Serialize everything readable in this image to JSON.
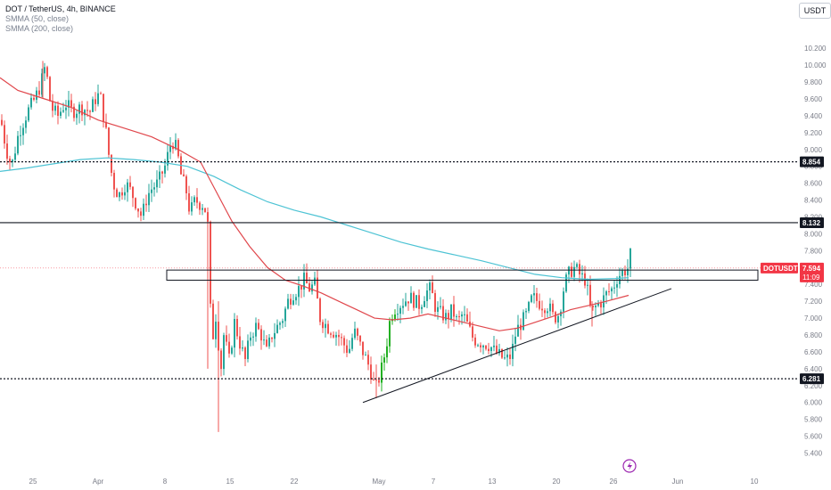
{
  "header": {
    "symbol_line": "DOT / TetherUS, 4h, BINANCE",
    "indicator_1": "SMMA (50, close)",
    "indicator_2": "SMMA (200, close)",
    "unit_button": "USDT"
  },
  "colors": {
    "up": "#26a69a",
    "up_bright": "#22b022",
    "down": "#ef5350",
    "smma50": "#e0474c",
    "smma200": "#4dc3d4",
    "level_line": "#131722",
    "price_tag": "#f23645"
  },
  "chart_data": {
    "type": "candlestick",
    "symbol": "DOTUSDT",
    "timeframe": "4h",
    "ylim": [
      5.3,
      10.35
    ],
    "y_ticks": [
      "10.200",
      "10.000",
      "9.800",
      "9.600",
      "9.400",
      "9.200",
      "9.000",
      "8.800",
      "8.600",
      "8.400",
      "8.200",
      "8.000",
      "7.800",
      "7.600",
      "7.400",
      "7.200",
      "7.000",
      "6.800",
      "6.600",
      "6.400",
      "6.200",
      "6.000",
      "5.800",
      "5.600",
      "5.400"
    ],
    "x_ticks": [
      "25",
      "Apr",
      "8",
      "15",
      "22",
      "May",
      "7",
      "13",
      "20",
      "26",
      "Jun",
      "10"
    ],
    "levels": [
      {
        "label": "8.854",
        "value": 8.854,
        "style": "dotted"
      },
      {
        "label": "8.132",
        "value": 8.132,
        "style": "solid"
      },
      {
        "label": "6.281",
        "value": 6.281,
        "style": "dotted"
      }
    ],
    "current_price": {
      "symbol": "DOTUSDT",
      "price": "7.594",
      "countdown": "11:09",
      "value": 7.594
    },
    "resistance_zone": [
      7.45,
      7.57
    ],
    "trendline": {
      "from": {
        "x": "May 1",
        "y": 6.0
      },
      "to": {
        "x": "May 27",
        "y": 7.35
      }
    },
    "price_path": [
      [
        0,
        9.35
      ],
      [
        6,
        9.0
      ],
      [
        12,
        8.8
      ],
      [
        20,
        9.2
      ],
      [
        30,
        9.45
      ],
      [
        38,
        9.6
      ],
      [
        44,
        9.75
      ],
      [
        50,
        10.0
      ],
      [
        56,
        9.5
      ],
      [
        64,
        9.4
      ],
      [
        72,
        9.55
      ],
      [
        80,
        9.45
      ],
      [
        90,
        9.5
      ],
      [
        100,
        9.45
      ],
      [
        108,
        9.65
      ],
      [
        112,
        9.6
      ],
      [
        118,
        9.2
      ],
      [
        122,
        8.85
      ],
      [
        126,
        8.6
      ],
      [
        132,
        8.45
      ],
      [
        140,
        8.6
      ],
      [
        146,
        8.5
      ],
      [
        152,
        8.35
      ],
      [
        158,
        8.2
      ],
      [
        164,
        8.45
      ],
      [
        170,
        8.55
      ],
      [
        176,
        8.6
      ],
      [
        184,
        8.8
      ],
      [
        190,
        9.05
      ],
      [
        194,
        9.1
      ],
      [
        198,
        8.95
      ],
      [
        202,
        8.7
      ],
      [
        208,
        8.5
      ],
      [
        212,
        8.25
      ],
      [
        218,
        8.4
      ],
      [
        224,
        8.35
      ],
      [
        228,
        8.35
      ],
      [
        232,
        8.1
      ],
      [
        235,
        7.1
      ],
      [
        238,
        6.8
      ],
      [
        242,
        7.1
      ],
      [
        246,
        6.3
      ],
      [
        250,
        6.8
      ],
      [
        256,
        6.5
      ],
      [
        262,
        6.95
      ],
      [
        268,
        6.7
      ],
      [
        274,
        6.5
      ],
      [
        280,
        6.8
      ],
      [
        286,
        6.9
      ],
      [
        292,
        6.8
      ],
      [
        298,
        6.6
      ],
      [
        304,
        6.8
      ],
      [
        310,
        6.9
      ],
      [
        316,
        7.0
      ],
      [
        322,
        7.2
      ],
      [
        328,
        7.3
      ],
      [
        334,
        7.35
      ],
      [
        340,
        7.45
      ],
      [
        346,
        7.35
      ],
      [
        352,
        7.4
      ],
      [
        358,
        7.0
      ],
      [
        366,
        6.9
      ],
      [
        372,
        6.85
      ],
      [
        378,
        6.8
      ],
      [
        384,
        6.7
      ],
      [
        390,
        6.6
      ],
      [
        396,
        6.85
      ],
      [
        402,
        6.7
      ],
      [
        408,
        6.55
      ],
      [
        414,
        6.4
      ],
      [
        420,
        6.15
      ],
      [
        426,
        6.35
      ],
      [
        432,
        6.65
      ],
      [
        436,
        6.95
      ],
      [
        440,
        7.1
      ],
      [
        446,
        7.15
      ],
      [
        452,
        7.2
      ],
      [
        458,
        7.25
      ],
      [
        464,
        7.2
      ],
      [
        470,
        7.15
      ],
      [
        476,
        7.3
      ],
      [
        482,
        7.35
      ],
      [
        488,
        7.1
      ],
      [
        494,
        7.05
      ],
      [
        500,
        7.0
      ],
      [
        506,
        7.1
      ],
      [
        512,
        6.95
      ],
      [
        518,
        7.05
      ],
      [
        524,
        6.9
      ],
      [
        530,
        6.75
      ],
      [
        536,
        6.72
      ],
      [
        542,
        6.7
      ],
      [
        548,
        6.68
      ],
      [
        554,
        6.6
      ],
      [
        560,
        6.55
      ],
      [
        566,
        6.5
      ],
      [
        572,
        6.55
      ],
      [
        578,
        6.85
      ],
      [
        584,
        6.95
      ],
      [
        590,
        7.05
      ],
      [
        596,
        7.25
      ],
      [
        602,
        7.2
      ],
      [
        608,
        7.15
      ],
      [
        614,
        7.15
      ],
      [
        620,
        7.0
      ],
      [
        626,
        7.05
      ],
      [
        632,
        7.4
      ],
      [
        638,
        7.55
      ],
      [
        644,
        7.6
      ],
      [
        650,
        7.5
      ],
      [
        656,
        7.45
      ],
      [
        662,
        7.05
      ],
      [
        668,
        7.15
      ],
      [
        674,
        7.2
      ],
      [
        680,
        7.3
      ],
      [
        686,
        7.35
      ],
      [
        692,
        7.5
      ],
      [
        698,
        7.55
      ],
      [
        704,
        7.6
      ],
      [
        706,
        7.75
      ]
    ],
    "wicks": [
      {
        "x": 245,
        "high": 7.2,
        "low": 5.65
      },
      {
        "x": 233,
        "high": 8.2,
        "low": 6.4
      },
      {
        "x": 422,
        "high": 6.45,
        "low": 6.05
      },
      {
        "x": 664,
        "high": 7.2,
        "low": 6.9
      },
      {
        "x": 48,
        "high": 10.05,
        "low": 9.6
      }
    ],
    "smma50": [
      [
        0,
        9.85
      ],
      [
        20,
        9.7
      ],
      [
        50,
        9.6
      ],
      [
        80,
        9.5
      ],
      [
        110,
        9.35
      ],
      [
        140,
        9.25
      ],
      [
        170,
        9.15
      ],
      [
        200,
        9.0
      ],
      [
        225,
        8.85
      ],
      [
        240,
        8.55
      ],
      [
        260,
        8.15
      ],
      [
        280,
        7.85
      ],
      [
        300,
        7.6
      ],
      [
        320,
        7.45
      ],
      [
        340,
        7.38
      ],
      [
        360,
        7.3
      ],
      [
        380,
        7.2
      ],
      [
        400,
        7.1
      ],
      [
        420,
        7.0
      ],
      [
        440,
        6.98
      ],
      [
        460,
        7.0
      ],
      [
        480,
        7.05
      ],
      [
        500,
        7.0
      ],
      [
        520,
        6.95
      ],
      [
        540,
        6.9
      ],
      [
        560,
        6.85
      ],
      [
        580,
        6.88
      ],
      [
        600,
        6.95
      ],
      [
        620,
        7.02
      ],
      [
        640,
        7.1
      ],
      [
        660,
        7.15
      ],
      [
        680,
        7.2
      ],
      [
        705,
        7.27
      ]
    ],
    "smma200": [
      [
        0,
        8.74
      ],
      [
        30,
        8.78
      ],
      [
        60,
        8.83
      ],
      [
        90,
        8.88
      ],
      [
        120,
        8.9
      ],
      [
        150,
        8.88
      ],
      [
        180,
        8.85
      ],
      [
        210,
        8.8
      ],
      [
        240,
        8.68
      ],
      [
        270,
        8.52
      ],
      [
        300,
        8.38
      ],
      [
        330,
        8.28
      ],
      [
        360,
        8.2
      ],
      [
        390,
        8.1
      ],
      [
        420,
        8.0
      ],
      [
        450,
        7.9
      ],
      [
        480,
        7.82
      ],
      [
        510,
        7.75
      ],
      [
        540,
        7.68
      ],
      [
        570,
        7.6
      ],
      [
        600,
        7.52
      ],
      [
        630,
        7.48
      ],
      [
        660,
        7.46
      ],
      [
        690,
        7.47
      ],
      [
        705,
        7.48
      ]
    ]
  }
}
